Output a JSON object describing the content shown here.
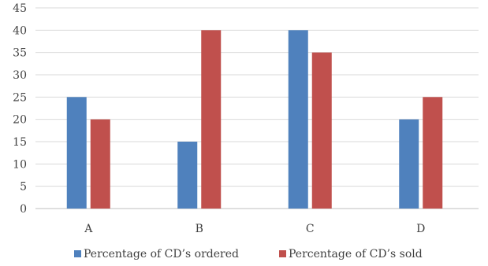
{
  "chart_data": {
    "type": "bar",
    "categories": [
      "A",
      "B",
      "C",
      "D"
    ],
    "series": [
      {
        "name": "Percentage of CD’s ordered",
        "values": [
          25,
          15,
          40,
          20
        ],
        "color": "#4f81bd"
      },
      {
        "name": "Percentage of CD’s sold",
        "values": [
          20,
          40,
          35,
          25
        ],
        "color": "#c0504d"
      }
    ],
    "title": "",
    "xlabel": "",
    "ylabel": "",
    "ylim": [
      0,
      45
    ],
    "yticks": [
      0,
      5,
      10,
      15,
      20,
      25,
      30,
      35,
      40,
      45
    ],
    "grid": true,
    "legend_position": "bottom",
    "colors": {
      "grid": "#d9d9d9",
      "axis": "#bfbfbf",
      "text": "#404040"
    }
  }
}
